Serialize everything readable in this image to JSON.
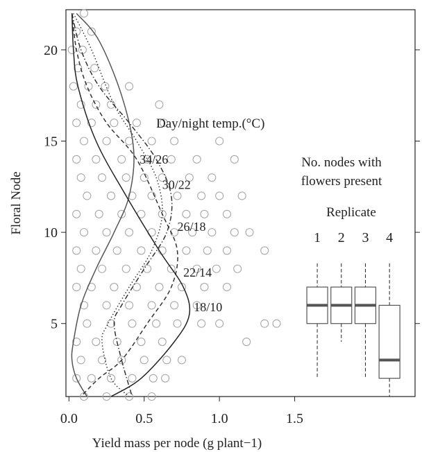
{
  "chart_data": {
    "type": "scatter",
    "title": "",
    "xlabel": "Yield mass per node (g plant−1)",
    "ylabel": "Floral Node",
    "xlim": [
      -0.02,
      2.3
    ],
    "ylim": [
      1,
      22.2
    ],
    "xticks": [
      0.0,
      0.5,
      1.0,
      1.5
    ],
    "xtick_labels": [
      "0.0",
      "0.5",
      "1.0",
      "1.5"
    ],
    "yticks": [
      5,
      10,
      15,
      20
    ],
    "ytick_labels": [
      "5",
      "10",
      "15",
      "20"
    ],
    "grid": false,
    "legend_title": "Day/night temp.(°C)",
    "series": [
      {
        "name": "34/26",
        "style": "solid",
        "color": "#555555",
        "label_at": [
          0.47,
          14.0
        ],
        "points": [
          [
            0.05,
            22
          ],
          [
            0.2,
            20.5
          ],
          [
            0.35,
            17.5
          ],
          [
            0.43,
            14.5
          ],
          [
            0.4,
            12
          ],
          [
            0.3,
            10
          ],
          [
            0.18,
            8
          ],
          [
            0.08,
            6
          ],
          [
            0.03,
            4
          ],
          [
            0.02,
            3
          ],
          [
            0.05,
            2
          ],
          [
            0.12,
            1
          ]
        ]
      },
      {
        "name": "30/22",
        "style": "dotted",
        "color": "#333333",
        "label_at": [
          0.62,
          12.6
        ],
        "points": [
          [
            0.03,
            22
          ],
          [
            0.15,
            20
          ],
          [
            0.3,
            17
          ],
          [
            0.45,
            15
          ],
          [
            0.58,
            13
          ],
          [
            0.62,
            11
          ],
          [
            0.55,
            9
          ],
          [
            0.4,
            7
          ],
          [
            0.26,
            5
          ],
          [
            0.22,
            4
          ],
          [
            0.28,
            2
          ],
          [
            0.4,
            1
          ]
        ]
      },
      {
        "name": "26/18",
        "style": "dashdot",
        "color": "#333333",
        "label_at": [
          0.72,
          10.3
        ],
        "points": [
          [
            0.02,
            22
          ],
          [
            0.08,
            20
          ],
          [
            0.2,
            18
          ],
          [
            0.4,
            16
          ],
          [
            0.58,
            14
          ],
          [
            0.68,
            12
          ],
          [
            0.65,
            10
          ],
          [
            0.5,
            8
          ],
          [
            0.35,
            6
          ],
          [
            0.3,
            5
          ],
          [
            0.35,
            3
          ],
          [
            0.42,
            1
          ]
        ]
      },
      {
        "name": "22/14",
        "style": "dashed",
        "color": "#333333",
        "label_at": [
          0.76,
          7.8
        ],
        "points": [
          [
            0.02,
            22
          ],
          [
            0.05,
            20
          ],
          [
            0.12,
            18
          ],
          [
            0.25,
            16
          ],
          [
            0.45,
            14
          ],
          [
            0.62,
            11
          ],
          [
            0.72,
            9
          ],
          [
            0.68,
            7
          ],
          [
            0.52,
            5
          ],
          [
            0.35,
            3
          ],
          [
            0.2,
            2
          ],
          [
            0.08,
            1
          ]
        ]
      },
      {
        "name": "18/10",
        "style": "solid",
        "color": "#222222",
        "label_at": [
          0.83,
          5.9
        ],
        "points": [
          [
            0.02,
            22
          ],
          [
            0.03,
            20
          ],
          [
            0.06,
            18
          ],
          [
            0.18,
            15
          ],
          [
            0.38,
            12
          ],
          [
            0.6,
            9
          ],
          [
            0.76,
            7
          ],
          [
            0.8,
            5.5
          ],
          [
            0.7,
            4
          ],
          [
            0.48,
            2
          ],
          [
            0.28,
            1
          ]
        ]
      }
    ],
    "boxplot": {
      "title": "No. nodes with flowers present",
      "subtitle": "Replicate",
      "replicates": [
        {
          "label": "1",
          "x": 1.65,
          "whisker_low": 2,
          "q1": 5,
          "median": 6,
          "q3": 7,
          "whisker_high": 8.3
        },
        {
          "label": "2",
          "x": 1.81,
          "whisker_low": 4,
          "q1": 5,
          "median": 6,
          "q3": 7,
          "whisker_high": 8.3
        },
        {
          "label": "3",
          "x": 1.97,
          "whisker_low": 2,
          "q1": 5,
          "median": 6,
          "q3": 7,
          "whisker_high": 8.3
        },
        {
          "label": "4",
          "x": 2.13,
          "whisker_low": 1,
          "q1": 2,
          "median": 3,
          "q3": 6,
          "whisker_high": 8.3
        }
      ]
    },
    "scatter_points": [
      [
        0.1,
        22
      ],
      [
        0.15,
        21
      ],
      [
        0.05,
        21
      ],
      [
        0.09,
        20
      ],
      [
        0.02,
        20
      ],
      [
        0.17,
        19
      ],
      [
        0.06,
        19
      ],
      [
        0.24,
        18
      ],
      [
        0.4,
        18
      ],
      [
        0.13,
        18
      ],
      [
        0.03,
        18
      ],
      [
        0.08,
        17
      ],
      [
        0.18,
        17
      ],
      [
        0.28,
        17
      ],
      [
        0.6,
        17
      ],
      [
        0.05,
        16
      ],
      [
        0.15,
        16
      ],
      [
        0.3,
        16
      ],
      [
        0.45,
        16
      ],
      [
        0.63,
        16
      ],
      [
        0.1,
        15
      ],
      [
        0.25,
        15
      ],
      [
        0.4,
        15
      ],
      [
        0.55,
        15
      ],
      [
        0.7,
        15
      ],
      [
        1.0,
        15
      ],
      [
        0.05,
        14
      ],
      [
        0.18,
        14
      ],
      [
        0.35,
        14
      ],
      [
        0.52,
        14
      ],
      [
        0.68,
        14
      ],
      [
        0.85,
        14
      ],
      [
        1.1,
        14
      ],
      [
        0.08,
        13
      ],
      [
        0.22,
        13
      ],
      [
        0.38,
        13
      ],
      [
        0.5,
        13
      ],
      [
        0.62,
        13
      ],
      [
        0.8,
        13
      ],
      [
        0.95,
        13
      ],
      [
        0.12,
        12
      ],
      [
        0.28,
        12
      ],
      [
        0.42,
        12
      ],
      [
        0.55,
        12
      ],
      [
        0.72,
        12
      ],
      [
        0.88,
        12
      ],
      [
        1.0,
        12
      ],
      [
        1.15,
        12
      ],
      [
        0.05,
        11
      ],
      [
        0.2,
        11
      ],
      [
        0.35,
        11
      ],
      [
        0.48,
        11
      ],
      [
        0.62,
        11
      ],
      [
        0.78,
        11
      ],
      [
        0.9,
        11
      ],
      [
        1.05,
        11
      ],
      [
        0.1,
        10
      ],
      [
        0.25,
        10
      ],
      [
        0.4,
        10
      ],
      [
        0.55,
        10
      ],
      [
        0.7,
        10
      ],
      [
        0.82,
        10
      ],
      [
        0.95,
        10
      ],
      [
        1.1,
        10
      ],
      [
        1.2,
        10
      ],
      [
        0.05,
        9
      ],
      [
        0.18,
        9
      ],
      [
        0.32,
        9
      ],
      [
        0.48,
        9
      ],
      [
        0.62,
        9
      ],
      [
        0.78,
        9
      ],
      [
        0.92,
        9
      ],
      [
        1.05,
        9
      ],
      [
        1.3,
        9
      ],
      [
        0.08,
        8
      ],
      [
        0.22,
        8
      ],
      [
        0.38,
        8
      ],
      [
        0.52,
        8
      ],
      [
        0.68,
        8
      ],
      [
        0.85,
        8
      ],
      [
        0.98,
        8
      ],
      [
        1.12,
        8
      ],
      [
        0.05,
        7
      ],
      [
        0.15,
        7
      ],
      [
        0.3,
        7
      ],
      [
        0.45,
        7
      ],
      [
        0.6,
        7
      ],
      [
        0.75,
        7
      ],
      [
        0.9,
        7
      ],
      [
        1.05,
        7
      ],
      [
        0.1,
        6
      ],
      [
        0.25,
        6
      ],
      [
        0.4,
        6
      ],
      [
        0.55,
        6
      ],
      [
        0.7,
        6
      ],
      [
        0.85,
        6
      ],
      [
        0.12,
        5
      ],
      [
        0.28,
        5
      ],
      [
        0.42,
        5
      ],
      [
        0.58,
        5
      ],
      [
        0.72,
        5
      ],
      [
        0.88,
        5
      ],
      [
        1.0,
        5
      ],
      [
        1.3,
        5
      ],
      [
        1.38,
        5
      ],
      [
        0.05,
        4
      ],
      [
        0.18,
        4
      ],
      [
        0.32,
        4
      ],
      [
        0.48,
        4
      ],
      [
        0.62,
        4
      ],
      [
        1.18,
        4
      ],
      [
        0.08,
        3
      ],
      [
        0.22,
        3
      ],
      [
        0.35,
        3
      ],
      [
        0.5,
        3
      ],
      [
        0.65,
        3
      ],
      [
        0.75,
        3
      ],
      [
        0.05,
        2
      ],
      [
        0.15,
        2
      ],
      [
        0.28,
        2
      ],
      [
        0.42,
        2
      ],
      [
        0.56,
        2
      ],
      [
        0.64,
        2
      ],
      [
        0.1,
        1
      ],
      [
        0.25,
        1
      ],
      [
        0.4,
        1
      ],
      [
        0.55,
        1
      ]
    ]
  }
}
